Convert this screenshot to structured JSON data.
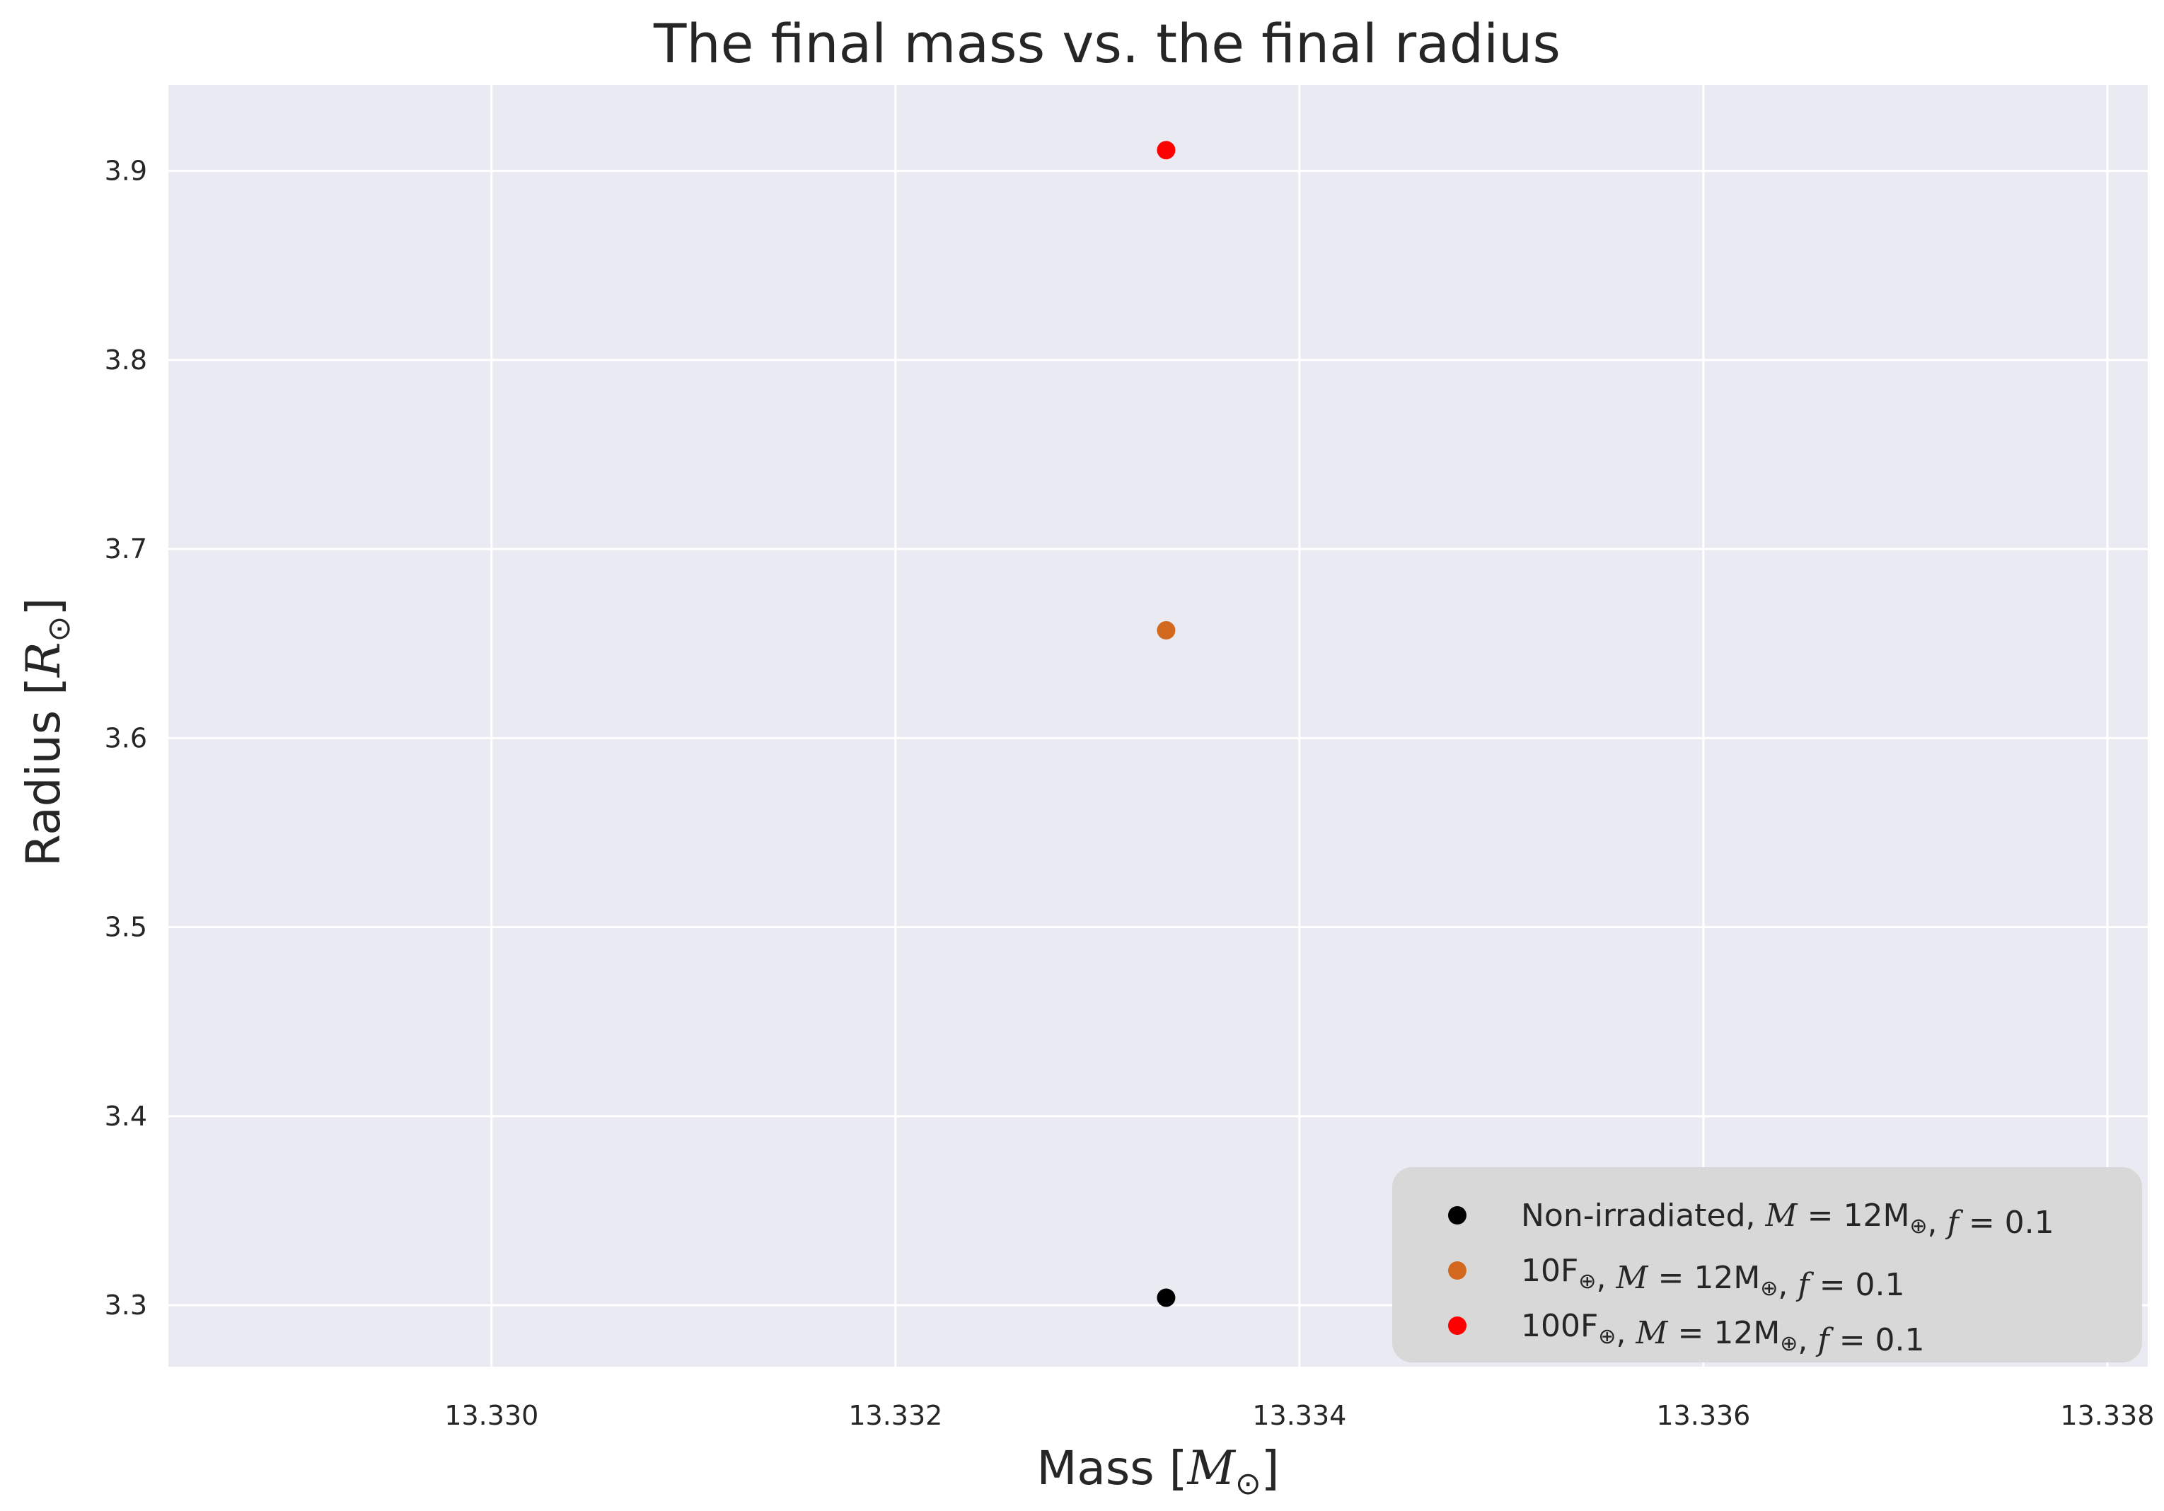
{
  "chart_data": {
    "type": "scatter",
    "title": "The final mass vs. the final radius",
    "xlabel": {
      "prefix": "Mass [",
      "symbol": "M",
      "sub": "⊙",
      "suffix": "]"
    },
    "ylabel": {
      "prefix": "Radius [",
      "symbol": "R",
      "sub": "⊙",
      "suffix": "]"
    },
    "xlim": [
      13.3284,
      13.3382
    ],
    "ylim": [
      3.2675,
      3.9455
    ],
    "xticks": [
      13.33,
      13.332,
      13.334,
      13.336,
      13.338
    ],
    "xtick_labels": [
      "13.330",
      "13.332",
      "13.334",
      "13.336",
      "13.338"
    ],
    "yticks": [
      3.3,
      3.4,
      3.5,
      3.6,
      3.7,
      3.8,
      3.9
    ],
    "ytick_labels": [
      "3.3",
      "3.4",
      "3.5",
      "3.6",
      "3.7",
      "3.8",
      "3.9"
    ],
    "grid": true,
    "legend_position": "lower-right",
    "background_color": "#eaeaf2",
    "series": [
      {
        "name": "Non-irradiated, M = 12M⊕, f = 0.1",
        "color": "#000000",
        "points": [
          {
            "x": 13.33334,
            "y": 3.304
          }
        ]
      },
      {
        "name": "10F⊕, M = 12M⊕, f = 0.1",
        "color": "#d2691e",
        "points": [
          {
            "x": 13.33334,
            "y": 3.657
          }
        ]
      },
      {
        "name": "100F⊕, M = 12M⊕, f = 0.1",
        "color": "#ff0000",
        "points": [
          {
            "x": 13.33334,
            "y": 3.911
          }
        ]
      }
    ]
  }
}
